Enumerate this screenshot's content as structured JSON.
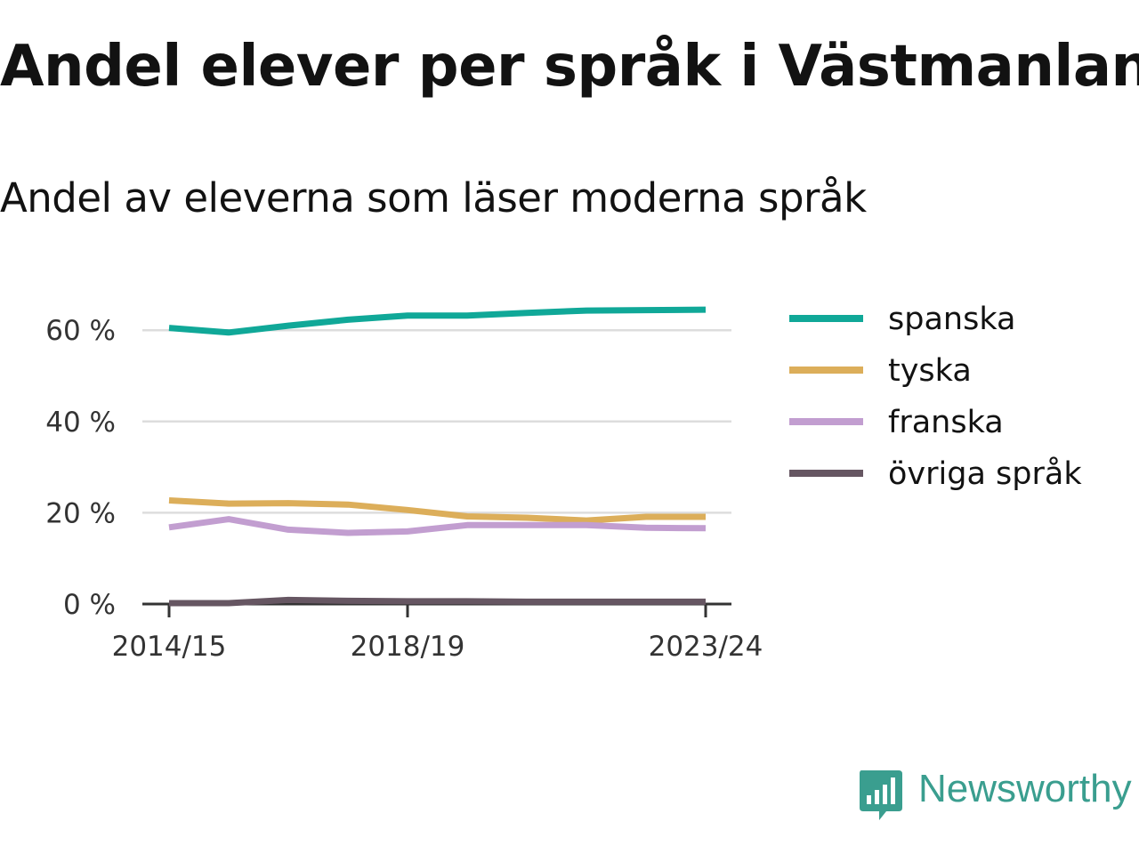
{
  "title": "Andel elever per språk i Västmanland",
  "subtitle": "Andel av eleverna som läser moderna språk",
  "brand": {
    "name": "Newsworthy",
    "color": "#3a9e8f"
  },
  "chart_data": {
    "type": "line",
    "x": [
      "2014/15",
      "2015/16",
      "2016/17",
      "2017/18",
      "2018/19",
      "2019/20",
      "2020/21",
      "2021/22",
      "2022/23",
      "2023/24"
    ],
    "x_tick_labels": [
      "2014/15",
      "2018/19",
      "2023/24"
    ],
    "y_ticks": [
      0,
      20,
      40,
      60
    ],
    "y_tick_labels": [
      "0 %",
      "20 %",
      "40 %",
      "60 %"
    ],
    "ylim": [
      0,
      70
    ],
    "grid": true,
    "legend_position": "right",
    "series": [
      {
        "name": "spanska",
        "color": "#10a898",
        "values": [
          60.5,
          59.5,
          61,
          62.3,
          63.2,
          63.2,
          63.8,
          64.3,
          64.4,
          64.5
        ]
      },
      {
        "name": "tyska",
        "color": "#dcae5a",
        "values": [
          22.7,
          22,
          22.1,
          21.8,
          20.6,
          19.2,
          18.9,
          18.3,
          19.1,
          19.1
        ]
      },
      {
        "name": "franska",
        "color": "#c29ed0",
        "values": [
          16.8,
          18.6,
          16.3,
          15.6,
          15.9,
          17.3,
          17.3,
          17.3,
          16.7,
          16.6
        ]
      },
      {
        "name": "övriga språk",
        "color": "#665662",
        "values": [
          0.2,
          0.2,
          0.9,
          0.7,
          0.6,
          0.6,
          0.5,
          0.5,
          0.5,
          0.5
        ]
      }
    ]
  }
}
